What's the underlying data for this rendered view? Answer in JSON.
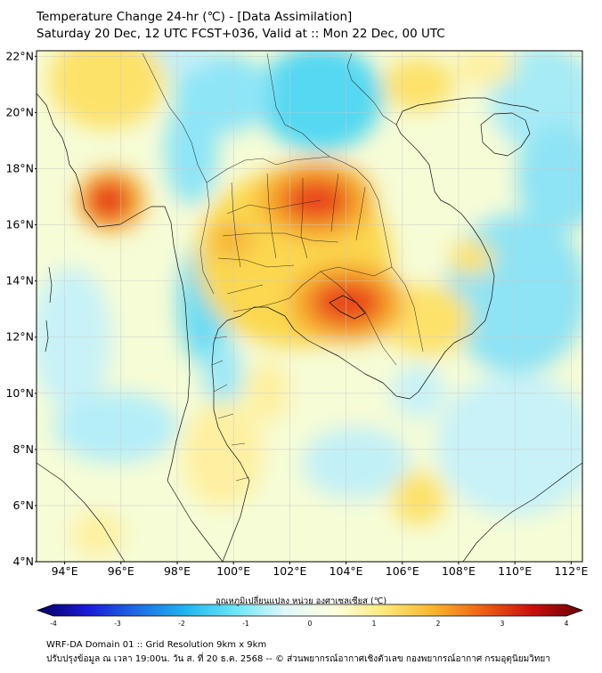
{
  "header": {
    "title_line1": "Temperature Change 24-hr (℃) - [Data Assimilation]",
    "title_line2": "Saturday 20 Dec, 12 UTC FCST+036, Valid at :: Mon 22 Dec, 00 UTC"
  },
  "map": {
    "lat_labels": [
      "22°N",
      "20°N",
      "18°N",
      "16°N",
      "14°N",
      "12°N",
      "10°N",
      "8°N",
      "6°N",
      "4°N"
    ],
    "lat_values": [
      22,
      20,
      18,
      16,
      14,
      12,
      10,
      8,
      6,
      4
    ],
    "lon_labels": [
      "94°E",
      "96°E",
      "98°E",
      "100°E",
      "102°E",
      "104°E",
      "106°E",
      "108°E",
      "110°E",
      "112°E"
    ],
    "lon_values": [
      94,
      96,
      98,
      100,
      102,
      104,
      106,
      108,
      110,
      112
    ],
    "extent": {
      "lon_min": 93,
      "lon_max": 112.4,
      "lat_min": 4,
      "lat_max": 22.2
    },
    "hotspots": [
      {
        "lon": 95.5,
        "lat": 16.8,
        "value": 3.2
      },
      {
        "lon": 102.8,
        "lat": 16.8,
        "value": 3.0
      },
      {
        "lon": 104.0,
        "lat": 13.0,
        "value": 3.1
      },
      {
        "lon": 101.5,
        "lat": 15.5,
        "value": 1.8
      },
      {
        "lon": 97.2,
        "lat": 20.0,
        "value": 1.5
      },
      {
        "lon": 107.5,
        "lat": 20.9,
        "value": 1.5
      }
    ],
    "coldspots": [
      {
        "lon": 101.2,
        "lat": 20.3,
        "value": -1.6
      },
      {
        "lon": 98.8,
        "lat": 13.0,
        "value": -1.2
      },
      {
        "lon": 111.5,
        "lat": 14.0,
        "value": -1.5
      }
    ]
  },
  "colorbar": {
    "title": "อุณหภูมิเปลี่ยนแปลง หน่วย องศาเซลเซียส (℃)",
    "ticks": [
      "-4",
      "-3",
      "-2",
      "-1",
      "0",
      "1",
      "2",
      "3",
      "4"
    ],
    "min": -4,
    "max": 4,
    "colors": [
      "#07005f",
      "#1a1ad6",
      "#1e6be8",
      "#1fb6f0",
      "#6be6f7",
      "#dff8fb",
      "#ffffe0",
      "#fde87a",
      "#f8b52a",
      "#ee5f15",
      "#c80f0a",
      "#6a0005"
    ]
  },
  "footer": {
    "line1": "WRF-DA Domain 01 :: Grid Resolution 9km x 9km",
    "line2": "ปรับปรุงข้อมูล ณ เวลา 19:00น. วัน ส. ที่ 20 ธ.ค. 2568 -- © ส่วนพยากรณ์อากาศเชิงตัวเลข กองพยากรณ์อากาศ กรมอุตุนิยมวิทยา"
  }
}
